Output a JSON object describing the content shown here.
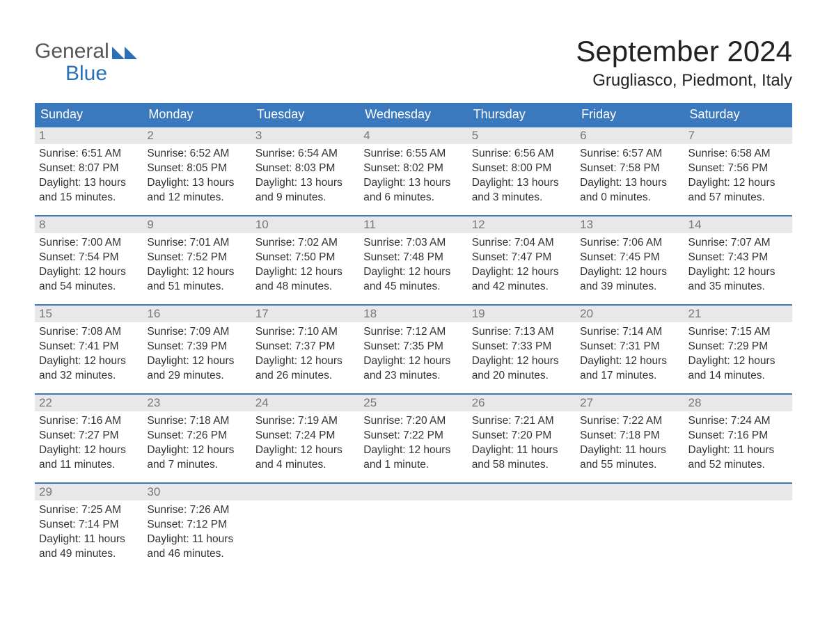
{
  "logo": {
    "text_top": "General",
    "text_bottom": "Blue"
  },
  "title": "September 2024",
  "location": "Grugliasco, Piedmont, Italy",
  "colors": {
    "header_bg": "#3a79bd",
    "header_text": "#ffffff",
    "daynum_bg": "#e8e8e8",
    "daynum_text": "#777777",
    "body_text": "#333333",
    "row_border": "#3a79bd",
    "logo_gray": "#555555",
    "logo_blue": "#2a70b8",
    "page_bg": "#ffffff"
  },
  "weekdays": [
    "Sunday",
    "Monday",
    "Tuesday",
    "Wednesday",
    "Thursday",
    "Friday",
    "Saturday"
  ],
  "weeks": [
    [
      {
        "day": "1",
        "sunrise": "Sunrise: 6:51 AM",
        "sunset": "Sunset: 8:07 PM",
        "daylight": "Daylight: 13 hours and 15 minutes."
      },
      {
        "day": "2",
        "sunrise": "Sunrise: 6:52 AM",
        "sunset": "Sunset: 8:05 PM",
        "daylight": "Daylight: 13 hours and 12 minutes."
      },
      {
        "day": "3",
        "sunrise": "Sunrise: 6:54 AM",
        "sunset": "Sunset: 8:03 PM",
        "daylight": "Daylight: 13 hours and 9 minutes."
      },
      {
        "day": "4",
        "sunrise": "Sunrise: 6:55 AM",
        "sunset": "Sunset: 8:02 PM",
        "daylight": "Daylight: 13 hours and 6 minutes."
      },
      {
        "day": "5",
        "sunrise": "Sunrise: 6:56 AM",
        "sunset": "Sunset: 8:00 PM",
        "daylight": "Daylight: 13 hours and 3 minutes."
      },
      {
        "day": "6",
        "sunrise": "Sunrise: 6:57 AM",
        "sunset": "Sunset: 7:58 PM",
        "daylight": "Daylight: 13 hours and 0 minutes."
      },
      {
        "day": "7",
        "sunrise": "Sunrise: 6:58 AM",
        "sunset": "Sunset: 7:56 PM",
        "daylight": "Daylight: 12 hours and 57 minutes."
      }
    ],
    [
      {
        "day": "8",
        "sunrise": "Sunrise: 7:00 AM",
        "sunset": "Sunset: 7:54 PM",
        "daylight": "Daylight: 12 hours and 54 minutes."
      },
      {
        "day": "9",
        "sunrise": "Sunrise: 7:01 AM",
        "sunset": "Sunset: 7:52 PM",
        "daylight": "Daylight: 12 hours and 51 minutes."
      },
      {
        "day": "10",
        "sunrise": "Sunrise: 7:02 AM",
        "sunset": "Sunset: 7:50 PM",
        "daylight": "Daylight: 12 hours and 48 minutes."
      },
      {
        "day": "11",
        "sunrise": "Sunrise: 7:03 AM",
        "sunset": "Sunset: 7:48 PM",
        "daylight": "Daylight: 12 hours and 45 minutes."
      },
      {
        "day": "12",
        "sunrise": "Sunrise: 7:04 AM",
        "sunset": "Sunset: 7:47 PM",
        "daylight": "Daylight: 12 hours and 42 minutes."
      },
      {
        "day": "13",
        "sunrise": "Sunrise: 7:06 AM",
        "sunset": "Sunset: 7:45 PM",
        "daylight": "Daylight: 12 hours and 39 minutes."
      },
      {
        "day": "14",
        "sunrise": "Sunrise: 7:07 AM",
        "sunset": "Sunset: 7:43 PM",
        "daylight": "Daylight: 12 hours and 35 minutes."
      }
    ],
    [
      {
        "day": "15",
        "sunrise": "Sunrise: 7:08 AM",
        "sunset": "Sunset: 7:41 PM",
        "daylight": "Daylight: 12 hours and 32 minutes."
      },
      {
        "day": "16",
        "sunrise": "Sunrise: 7:09 AM",
        "sunset": "Sunset: 7:39 PM",
        "daylight": "Daylight: 12 hours and 29 minutes."
      },
      {
        "day": "17",
        "sunrise": "Sunrise: 7:10 AM",
        "sunset": "Sunset: 7:37 PM",
        "daylight": "Daylight: 12 hours and 26 minutes."
      },
      {
        "day": "18",
        "sunrise": "Sunrise: 7:12 AM",
        "sunset": "Sunset: 7:35 PM",
        "daylight": "Daylight: 12 hours and 23 minutes."
      },
      {
        "day": "19",
        "sunrise": "Sunrise: 7:13 AM",
        "sunset": "Sunset: 7:33 PM",
        "daylight": "Daylight: 12 hours and 20 minutes."
      },
      {
        "day": "20",
        "sunrise": "Sunrise: 7:14 AM",
        "sunset": "Sunset: 7:31 PM",
        "daylight": "Daylight: 12 hours and 17 minutes."
      },
      {
        "day": "21",
        "sunrise": "Sunrise: 7:15 AM",
        "sunset": "Sunset: 7:29 PM",
        "daylight": "Daylight: 12 hours and 14 minutes."
      }
    ],
    [
      {
        "day": "22",
        "sunrise": "Sunrise: 7:16 AM",
        "sunset": "Sunset: 7:27 PM",
        "daylight": "Daylight: 12 hours and 11 minutes."
      },
      {
        "day": "23",
        "sunrise": "Sunrise: 7:18 AM",
        "sunset": "Sunset: 7:26 PM",
        "daylight": "Daylight: 12 hours and 7 minutes."
      },
      {
        "day": "24",
        "sunrise": "Sunrise: 7:19 AM",
        "sunset": "Sunset: 7:24 PM",
        "daylight": "Daylight: 12 hours and 4 minutes."
      },
      {
        "day": "25",
        "sunrise": "Sunrise: 7:20 AM",
        "sunset": "Sunset: 7:22 PM",
        "daylight": "Daylight: 12 hours and 1 minute."
      },
      {
        "day": "26",
        "sunrise": "Sunrise: 7:21 AM",
        "sunset": "Sunset: 7:20 PM",
        "daylight": "Daylight: 11 hours and 58 minutes."
      },
      {
        "day": "27",
        "sunrise": "Sunrise: 7:22 AM",
        "sunset": "Sunset: 7:18 PM",
        "daylight": "Daylight: 11 hours and 55 minutes."
      },
      {
        "day": "28",
        "sunrise": "Sunrise: 7:24 AM",
        "sunset": "Sunset: 7:16 PM",
        "daylight": "Daylight: 11 hours and 52 minutes."
      }
    ],
    [
      {
        "day": "29",
        "sunrise": "Sunrise: 7:25 AM",
        "sunset": "Sunset: 7:14 PM",
        "daylight": "Daylight: 11 hours and 49 minutes."
      },
      {
        "day": "30",
        "sunrise": "Sunrise: 7:26 AM",
        "sunset": "Sunset: 7:12 PM",
        "daylight": "Daylight: 11 hours and 46 minutes."
      },
      {
        "day": "",
        "sunrise": "",
        "sunset": "",
        "daylight": ""
      },
      {
        "day": "",
        "sunrise": "",
        "sunset": "",
        "daylight": ""
      },
      {
        "day": "",
        "sunrise": "",
        "sunset": "",
        "daylight": ""
      },
      {
        "day": "",
        "sunrise": "",
        "sunset": "",
        "daylight": ""
      },
      {
        "day": "",
        "sunrise": "",
        "sunset": "",
        "daylight": ""
      }
    ]
  ]
}
